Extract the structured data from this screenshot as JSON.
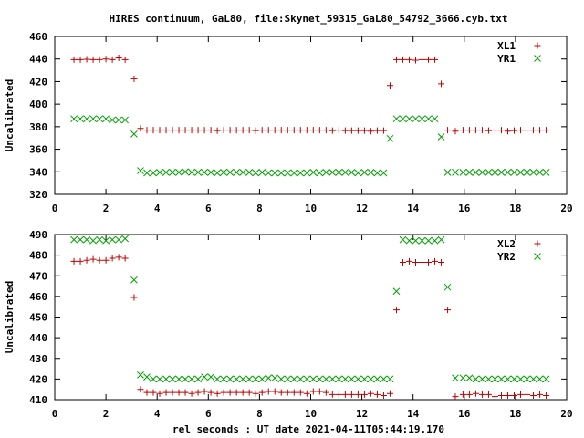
{
  "title": "HIRES continuum, GaL80, file:Skynet_59315_GaL80_54792_3666.cyb.txt",
  "xlabel": "rel seconds : UT date 2021-04-11T05:44:19.170",
  "colors": {
    "plus_series": "#c00000",
    "cross_series": "#00a000",
    "axis": "#000000"
  },
  "chart_data": [
    {
      "type": "scatter",
      "ylabel": "Uncalibrated",
      "xlim": [
        0,
        20
      ],
      "ylim": [
        320,
        460
      ],
      "xticks": [
        0,
        2,
        4,
        6,
        8,
        10,
        12,
        14,
        16,
        18,
        20
      ],
      "yticks": [
        320,
        340,
        360,
        380,
        400,
        420,
        440,
        460
      ],
      "legend_position": "top-right",
      "x": [
        0.75,
        1.0,
        1.25,
        1.5,
        1.75,
        2.0,
        2.25,
        2.5,
        2.75,
        3.1,
        3.35,
        3.6,
        3.85,
        4.1,
        4.35,
        4.6,
        4.85,
        5.1,
        5.35,
        5.6,
        5.85,
        6.1,
        6.35,
        6.6,
        6.85,
        7.1,
        7.35,
        7.6,
        7.85,
        8.1,
        8.35,
        8.6,
        8.85,
        9.1,
        9.35,
        9.6,
        9.85,
        10.1,
        10.35,
        10.6,
        10.85,
        11.1,
        11.35,
        11.6,
        11.85,
        12.1,
        12.35,
        12.6,
        12.85,
        13.1,
        13.35,
        13.6,
        13.85,
        14.1,
        14.35,
        14.6,
        14.85,
        15.1,
        15.35,
        15.65,
        15.95,
        16.2,
        16.45,
        16.7,
        16.95,
        17.2,
        17.45,
        17.7,
        17.95,
        18.2,
        18.45,
        18.7,
        18.95,
        19.2
      ],
      "series": [
        {
          "name": "XL1",
          "marker": "plus",
          "values": [
            439.5,
            439.5,
            439.8,
            439.5,
            439.5,
            440,
            439.5,
            441,
            439.5,
            422.5,
            378.5,
            377,
            377,
            377,
            377,
            377,
            377,
            377,
            377,
            377,
            377,
            377,
            376.5,
            377,
            377,
            377,
            377,
            377,
            376.5,
            377,
            377,
            377,
            377,
            377,
            377,
            377,
            377,
            377,
            377,
            377,
            376.5,
            377,
            376.5,
            376.5,
            376.5,
            376.5,
            376,
            376.5,
            376.5,
            416.5,
            439.5,
            439.5,
            439.5,
            439,
            439.5,
            439.5,
            439.5,
            418,
            377,
            376,
            377,
            377,
            377,
            377,
            376.5,
            377,
            377,
            376,
            376.5,
            377,
            377,
            377,
            377,
            377
          ]
        },
        {
          "name": "YR1",
          "marker": "cross",
          "values": [
            387,
            387,
            387,
            387,
            387,
            387,
            386,
            386,
            386,
            373.5,
            341,
            339,
            339,
            339.5,
            339.5,
            339.5,
            339.5,
            340,
            339.5,
            339.5,
            339.5,
            339.5,
            339,
            339.5,
            339.5,
            339.5,
            339.5,
            339.5,
            339,
            339.5,
            339,
            339,
            339,
            339,
            339,
            339,
            339,
            339.5,
            339,
            339.5,
            339.5,
            339.5,
            339.5,
            339.5,
            339,
            339.5,
            339.5,
            339,
            339,
            369.5,
            387,
            387,
            387,
            387,
            387,
            387,
            387,
            371,
            339.5,
            339.5,
            339.5,
            339.5,
            339.5,
            339.5,
            339.5,
            339.5,
            339.5,
            339.5,
            339.5,
            339.5,
            339.5,
            339.5,
            339.5,
            339.5
          ]
        }
      ]
    },
    {
      "type": "scatter",
      "ylabel": "Uncalibrated",
      "xlim": [
        0,
        20
      ],
      "ylim": [
        410,
        490
      ],
      "xticks": [
        0,
        2,
        4,
        6,
        8,
        10,
        12,
        14,
        16,
        18,
        20
      ],
      "yticks": [
        410,
        420,
        430,
        440,
        450,
        460,
        470,
        480,
        490
      ],
      "legend_position": "top-right",
      "x": [
        0.75,
        1.0,
        1.25,
        1.5,
        1.75,
        2.0,
        2.25,
        2.5,
        2.75,
        3.1,
        3.35,
        3.6,
        3.85,
        4.1,
        4.35,
        4.6,
        4.85,
        5.1,
        5.35,
        5.6,
        5.85,
        6.1,
        6.35,
        6.6,
        6.85,
        7.1,
        7.35,
        7.6,
        7.85,
        8.1,
        8.35,
        8.6,
        8.85,
        9.1,
        9.35,
        9.6,
        9.85,
        10.1,
        10.35,
        10.6,
        10.85,
        11.1,
        11.35,
        11.6,
        11.85,
        12.1,
        12.35,
        12.6,
        12.85,
        13.1,
        13.35,
        13.6,
        13.85,
        14.1,
        14.35,
        14.6,
        14.85,
        15.1,
        15.35,
        15.65,
        15.95,
        16.2,
        16.45,
        16.7,
        16.95,
        17.2,
        17.45,
        17.7,
        17.95,
        18.2,
        18.45,
        18.7,
        18.95,
        19.2
      ],
      "series": [
        {
          "name": "XL2",
          "marker": "plus",
          "values": [
            477,
            477,
            477.5,
            478,
            477.5,
            477.5,
            478.5,
            479,
            478.5,
            459.5,
            415,
            413.5,
            413.5,
            413,
            413.5,
            413.5,
            413.5,
            413.5,
            413,
            413.5,
            414,
            413.5,
            413,
            413.5,
            413.5,
            413.5,
            413.5,
            413.5,
            413,
            413.5,
            414,
            414,
            413.5,
            413.5,
            413.5,
            413.5,
            413,
            414,
            414,
            413.5,
            412.5,
            412.5,
            412.5,
            412.5,
            412.5,
            412.5,
            413,
            412.5,
            412,
            413,
            453.5,
            476.5,
            477,
            476.5,
            476.5,
            476.5,
            477,
            476.5,
            453.5,
            411.5,
            412.5,
            412.5,
            413,
            412.5,
            412.5,
            411.5,
            412,
            412,
            412,
            412.5,
            412.5,
            412,
            412.5,
            412
          ]
        },
        {
          "name": "YR2",
          "marker": "cross",
          "values": [
            487.5,
            487.5,
            487.5,
            487,
            487.5,
            487,
            487.5,
            487.5,
            488,
            468,
            422,
            421,
            420,
            420,
            420,
            420,
            420,
            420,
            420,
            420,
            421,
            421,
            420,
            420,
            420,
            420,
            420,
            420,
            420,
            420,
            420.5,
            420.5,
            420,
            420,
            420,
            420,
            420,
            420,
            420,
            420,
            420,
            420,
            420,
            420,
            420,
            420,
            420,
            420,
            420,
            420,
            462.5,
            487.5,
            487,
            487,
            487,
            487,
            487,
            487.5,
            464.5,
            420.5,
            420.5,
            420.5,
            420,
            420,
            420,
            420,
            420,
            420,
            420,
            420,
            420,
            420,
            420,
            420
          ]
        }
      ]
    }
  ]
}
